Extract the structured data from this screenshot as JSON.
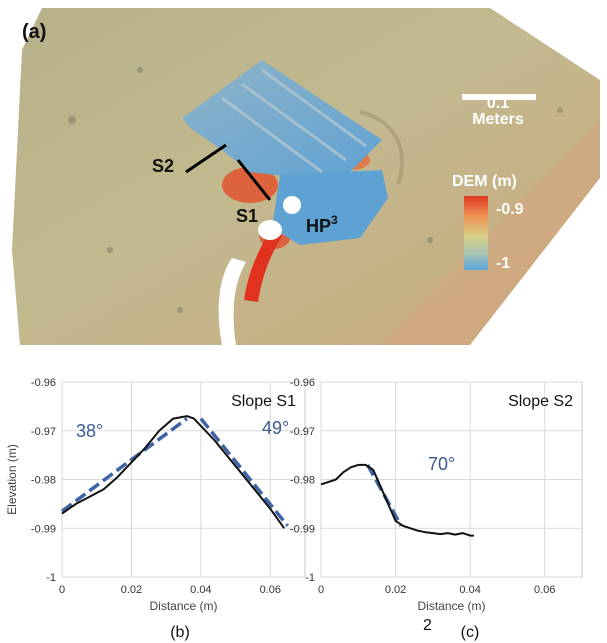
{
  "panel_a": {
    "label": "(a)",
    "scale_value": "0.1",
    "scale_unit": "Meters",
    "colorbar_title": "DEM (m)",
    "colorbar_max": "-0.9",
    "colorbar_min": "-1",
    "label_s1": "S1",
    "label_s2": "S2",
    "label_hp": "HP",
    "label_hp_sup": "3"
  },
  "captions": {
    "b": "(b)",
    "c": "(c)",
    "bottom_fragment": "2"
  },
  "chart_data": [
    {
      "type": "line",
      "title": "Slope S1",
      "xlabel": "Distance (m)",
      "ylabel": "Elevation (m)",
      "xlim": [
        0,
        0.07
      ],
      "ylim": [
        -1,
        -0.96
      ],
      "x_ticks": [
        "0",
        "0.02",
        "0.04",
        "0.06"
      ],
      "y_ticks": [
        "-0.96",
        "-0.97",
        "-0.98",
        "-0.99",
        "-1"
      ],
      "grid": true,
      "series": [
        {
          "x": [
            0,
            0.004,
            0.008,
            0.012,
            0.016,
            0.02,
            0.024,
            0.028,
            0.032,
            0.036,
            0.038,
            0.04,
            0.044,
            0.048,
            0.052,
            0.056,
            0.06,
            0.064
          ],
          "y": [
            -0.987,
            -0.985,
            -0.9835,
            -0.982,
            -0.9795,
            -0.9765,
            -0.9735,
            -0.97,
            -0.9675,
            -0.967,
            -0.9675,
            -0.969,
            -0.972,
            -0.9755,
            -0.979,
            -0.9825,
            -0.986,
            -0.99
          ]
        }
      ],
      "fit_lines": [
        {
          "angle": "38°",
          "x": [
            0,
            0.036
          ],
          "y": [
            -0.9865,
            -0.9675
          ]
        },
        {
          "angle": "49°",
          "x": [
            0.04,
            0.065
          ],
          "y": [
            -0.9675,
            -0.9895
          ]
        }
      ]
    },
    {
      "type": "line",
      "title": "Slope S2",
      "xlabel": "Distance (m)",
      "ylabel": "",
      "xlim": [
        0,
        0.07
      ],
      "ylim": [
        -1,
        -0.96
      ],
      "x_ticks": [
        "0",
        "0.02",
        "0.04",
        "0.06"
      ],
      "y_ticks": [
        "-0.96",
        "-0.97",
        "-0.98",
        "-0.99",
        "-1"
      ],
      "grid": true,
      "series": [
        {
          "x": [
            0,
            0.002,
            0.004,
            0.006,
            0.008,
            0.01,
            0.012,
            0.014,
            0.016,
            0.018,
            0.02,
            0.022,
            0.024,
            0.026,
            0.028,
            0.03,
            0.032,
            0.034,
            0.036,
            0.038,
            0.04,
            0.041
          ],
          "y": [
            -0.981,
            -0.9805,
            -0.98,
            -0.9785,
            -0.9775,
            -0.977,
            -0.977,
            -0.978,
            -0.9815,
            -0.985,
            -0.9885,
            -0.9895,
            -0.99,
            -0.9905,
            -0.9908,
            -0.991,
            -0.9912,
            -0.991,
            -0.9913,
            -0.991,
            -0.9915,
            -0.9915
          ]
        }
      ],
      "fit_lines": [
        {
          "angle": "70°",
          "x": [
            0.0125,
            0.0215
          ],
          "y": [
            -0.977,
            -0.9895
          ]
        }
      ]
    }
  ]
}
